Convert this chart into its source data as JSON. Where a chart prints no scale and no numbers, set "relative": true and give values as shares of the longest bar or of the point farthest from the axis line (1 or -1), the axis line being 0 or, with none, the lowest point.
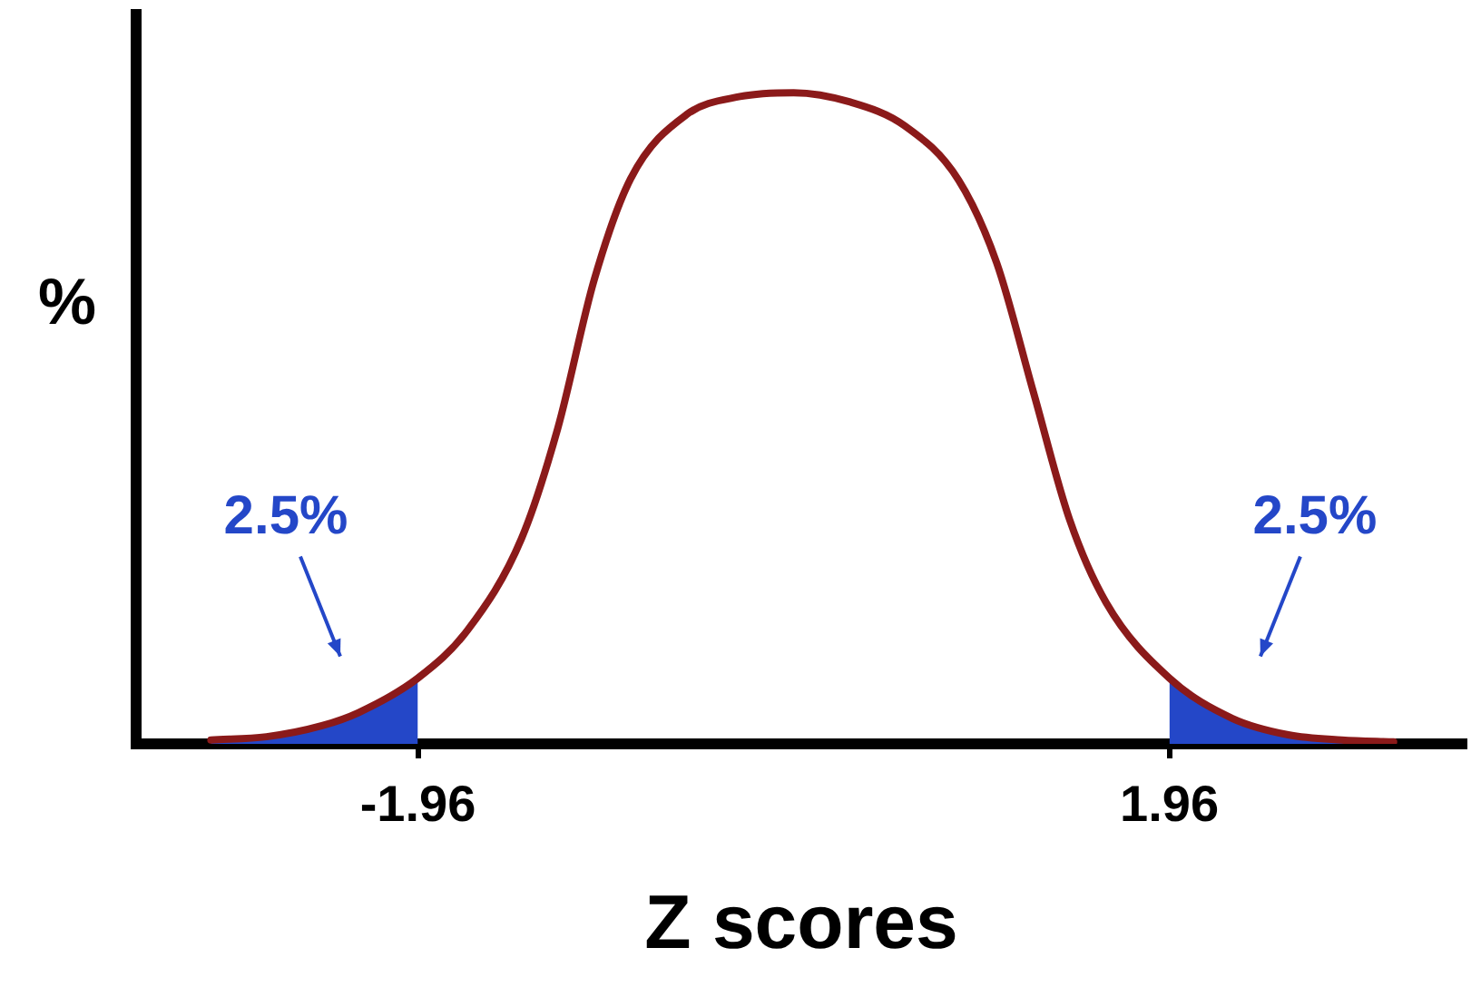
{
  "chart_data": {
    "type": "line",
    "relative": true,
    "xlabel": "Z scores",
    "ylabel": "%",
    "xlim": [
      -3.43,
      3.51
    ],
    "xticks": [
      -1.96,
      1.96
    ],
    "grid": false,
    "legend": false,
    "marker": "none",
    "line_style": "solid",
    "series": [
      {
        "color": "#8b1a1a",
        "x": [
          -3.04,
          -2.75,
          -2.46,
          -2.27,
          -1.96,
          -1.7,
          -1.42,
          -1.23,
          -1.04,
          -0.85,
          -0.56,
          -0.28,
          0,
          0.29,
          0.58,
          0.86,
          1.06,
          1.25,
          1.44,
          1.63,
          1.96,
          2.29,
          2.58,
          2.86,
          3.13
        ],
        "values": [
          0.006,
          0.011,
          0.028,
          0.048,
          0.101,
          0.175,
          0.315,
          0.485,
          0.713,
          0.868,
          0.966,
          0.994,
          1,
          0.986,
          0.949,
          0.866,
          0.738,
          0.541,
          0.344,
          0.217,
          0.101,
          0.039,
          0.014,
          0.006,
          0.003
        ]
      },
      {
        "type": "area",
        "color": "#2447c8",
        "x": [
          -3.04,
          -2.75,
          -2.46,
          -2.27,
          -1.96
        ],
        "values": [
          0.006,
          0.011,
          0.028,
          0.048,
          0.101
        ]
      },
      {
        "type": "area",
        "color": "#2447c8",
        "x": [
          1.96,
          2.29,
          2.58,
          2.86,
          3.13
        ],
        "values": [
          0.101,
          0.039,
          0.014,
          0.006,
          0.003
        ]
      }
    ],
    "annotations": [
      "2.5%",
      "2.5%"
    ]
  }
}
